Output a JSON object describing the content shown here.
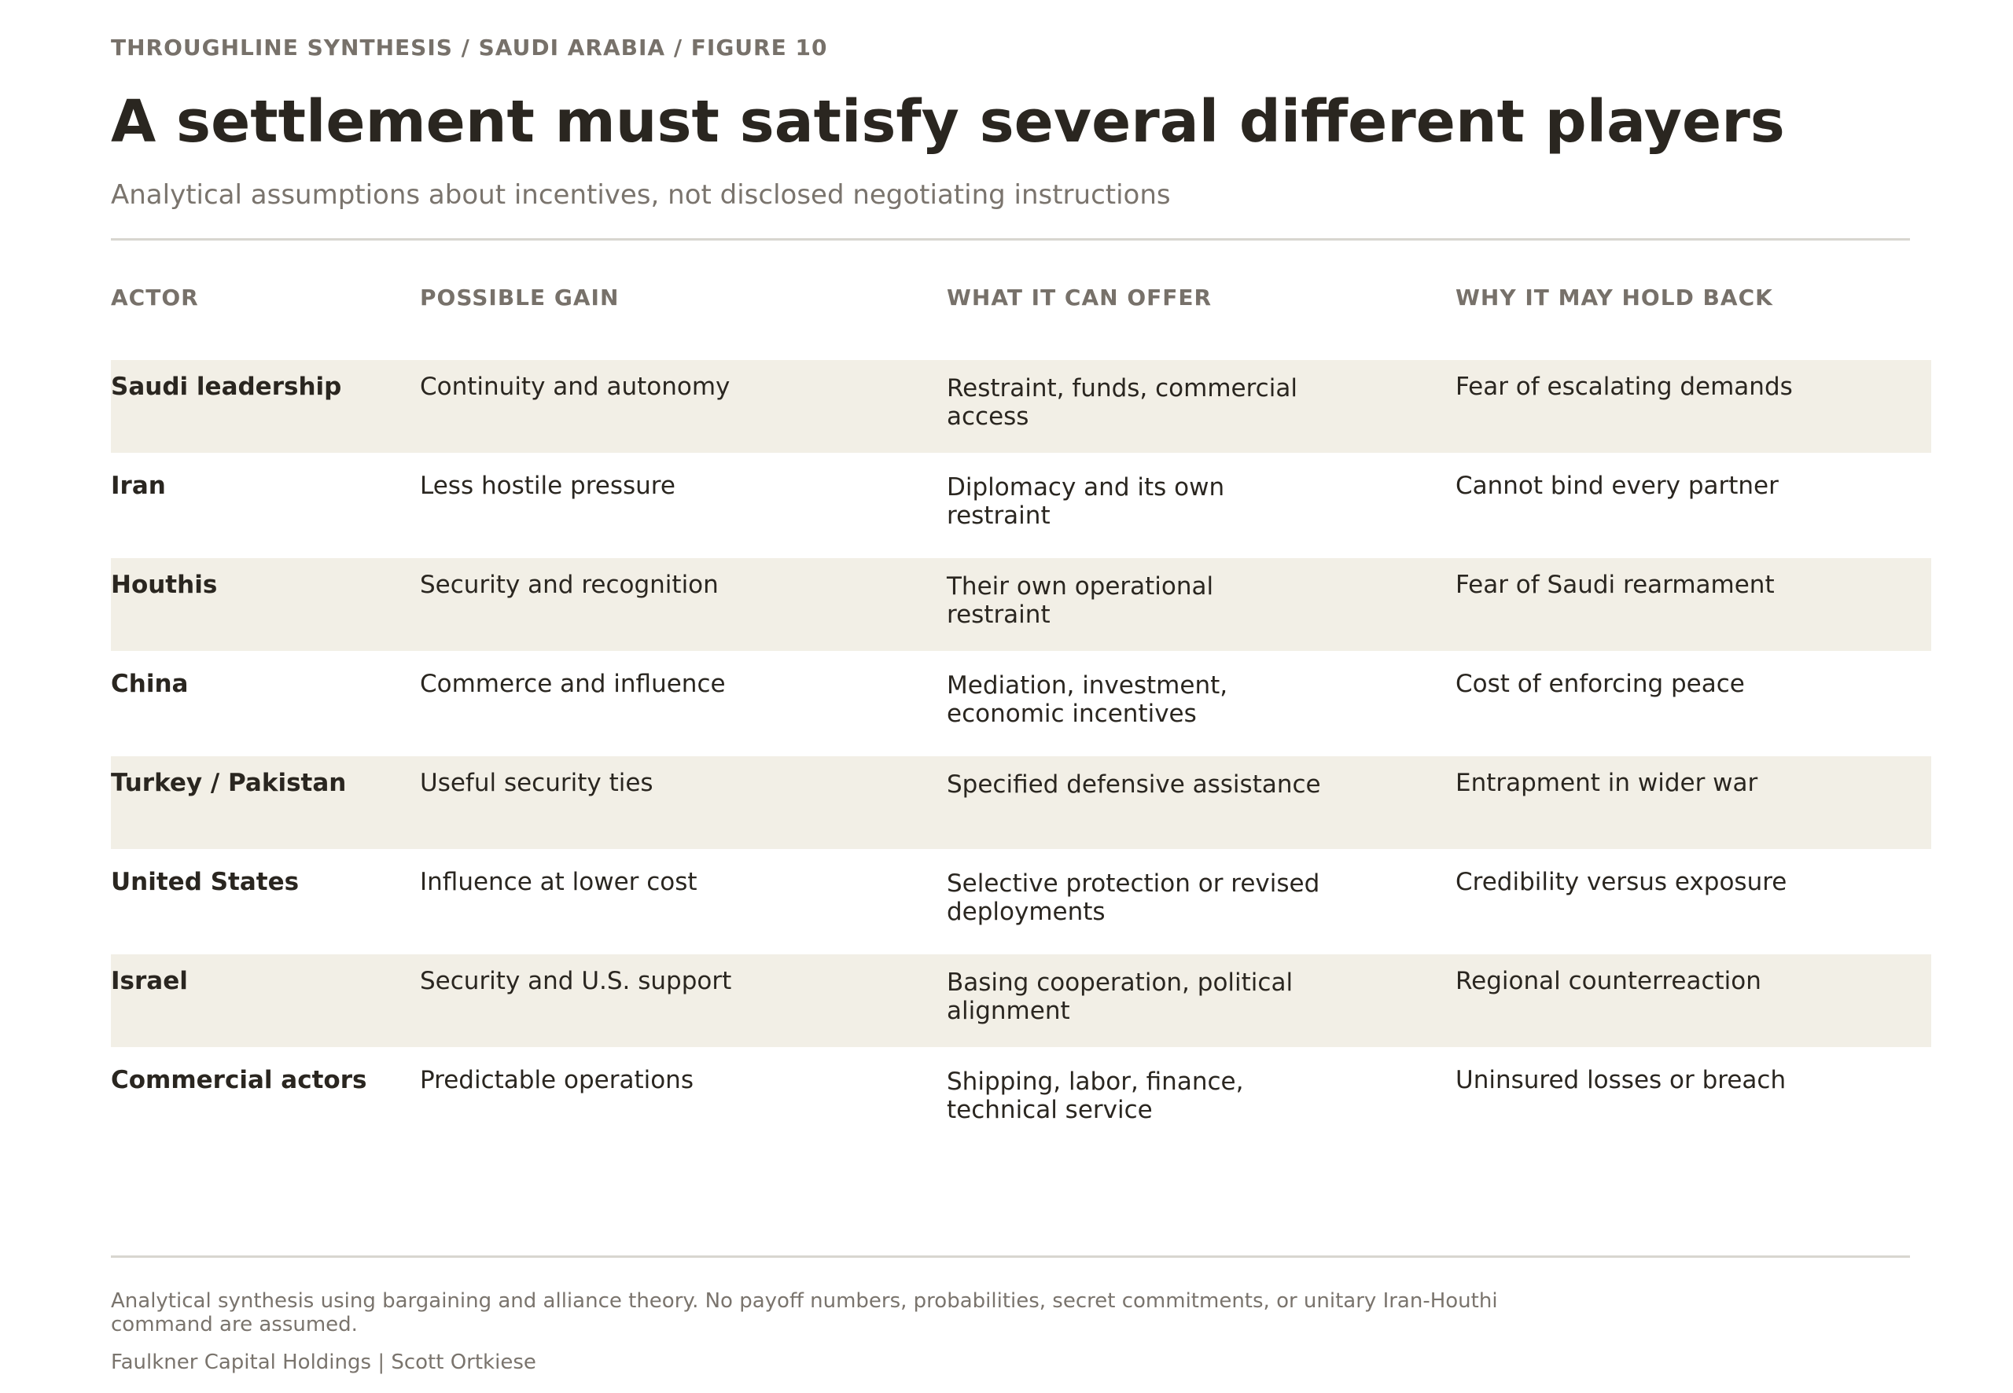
{
  "header": {
    "kicker": "THROUGHLINE SYNTHESIS / SAUDI ARABIA / FIGURE 10",
    "title": "A settlement must satisfy several different players",
    "subtitle": "Analytical assumptions about incentives, not disclosed negotiating instructions"
  },
  "table": {
    "columns": [
      "ACTOR",
      "POSSIBLE GAIN",
      "WHAT IT CAN OFFER",
      "WHY IT MAY HOLD BACK"
    ],
    "rows": [
      {
        "actor": "Saudi leadership",
        "gain": "Continuity and autonomy",
        "offer": "Restraint, funds, commercial access",
        "hold": "Fear of escalating demands"
      },
      {
        "actor": "Iran",
        "gain": "Less hostile pressure",
        "offer": "Diplomacy and its own restraint",
        "hold": "Cannot bind every partner"
      },
      {
        "actor": "Houthis",
        "gain": "Security and recognition",
        "offer": "Their own operational restraint",
        "hold": "Fear of Saudi rearmament"
      },
      {
        "actor": "China",
        "gain": "Commerce and influence",
        "offer": "Mediation, investment, economic incentives",
        "hold": "Cost of enforcing peace"
      },
      {
        "actor": "Turkey / Pakistan",
        "gain": "Useful security ties",
        "offer": "Specified defensive assistance",
        "hold": "Entrapment in wider war"
      },
      {
        "actor": "United States",
        "gain": "Influence at lower cost",
        "offer": "Selective protection or revised deployments",
        "hold": "Credibility versus exposure"
      },
      {
        "actor": "Israel",
        "gain": "Security and U.S. support",
        "offer": "Basing cooperation, political alignment",
        "hold": "Regional counterreaction"
      },
      {
        "actor": "Commercial actors",
        "gain": "Predictable operations",
        "offer": "Shipping, labor, finance, technical service",
        "hold": "Uninsured losses or breach"
      }
    ]
  },
  "footer": {
    "note": "Analytical synthesis using bargaining and alliance theory. No payoff numbers, probabilities, secret commitments, or unitary Iran-Houthi command are assumed.",
    "credit": "Faulkner Capital Holdings | Scott Ortkiese"
  },
  "colors": {
    "text": "#2a2620",
    "muted": "#77716a",
    "row_shade": "#f2efe6",
    "rule": "#d8d6d0"
  }
}
